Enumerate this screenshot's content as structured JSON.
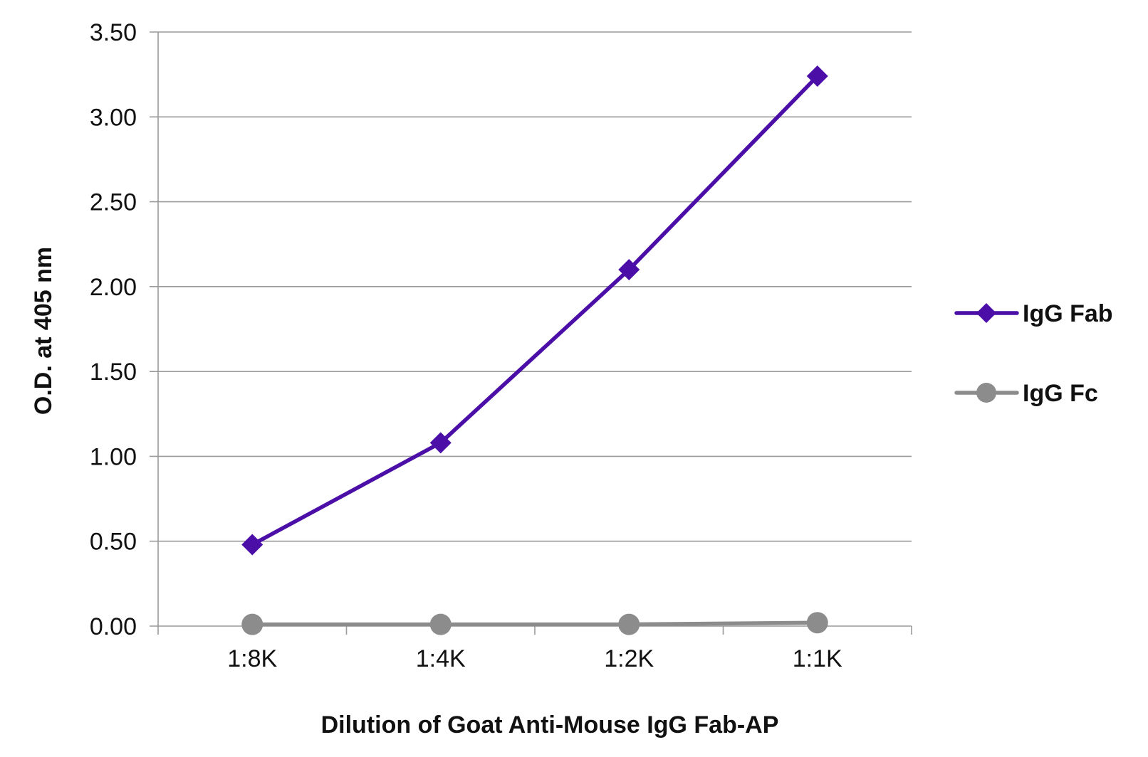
{
  "chart_data": {
    "type": "line",
    "xlabel": "Dilution of Goat Anti-Mouse IgG Fab-AP",
    "ylabel": "O.D. at 405 nm",
    "categories": [
      "1:8K",
      "1:4K",
      "1:2K",
      "1:1K"
    ],
    "ylim": [
      0,
      3.5
    ],
    "yticks": [
      "0.00",
      "0.50",
      "1.00",
      "1.50",
      "2.00",
      "2.50",
      "3.00",
      "3.50"
    ],
    "grid": true,
    "legend_position": "right",
    "series": [
      {
        "name": "IgG Fab",
        "values": [
          0.48,
          1.08,
          2.1,
          3.24
        ],
        "color": "#4b0fa8",
        "marker": "diamond"
      },
      {
        "name": "IgG Fc",
        "values": [
          0.01,
          0.01,
          0.01,
          0.02
        ],
        "color": "#8c8c8c",
        "marker": "circle"
      }
    ]
  }
}
